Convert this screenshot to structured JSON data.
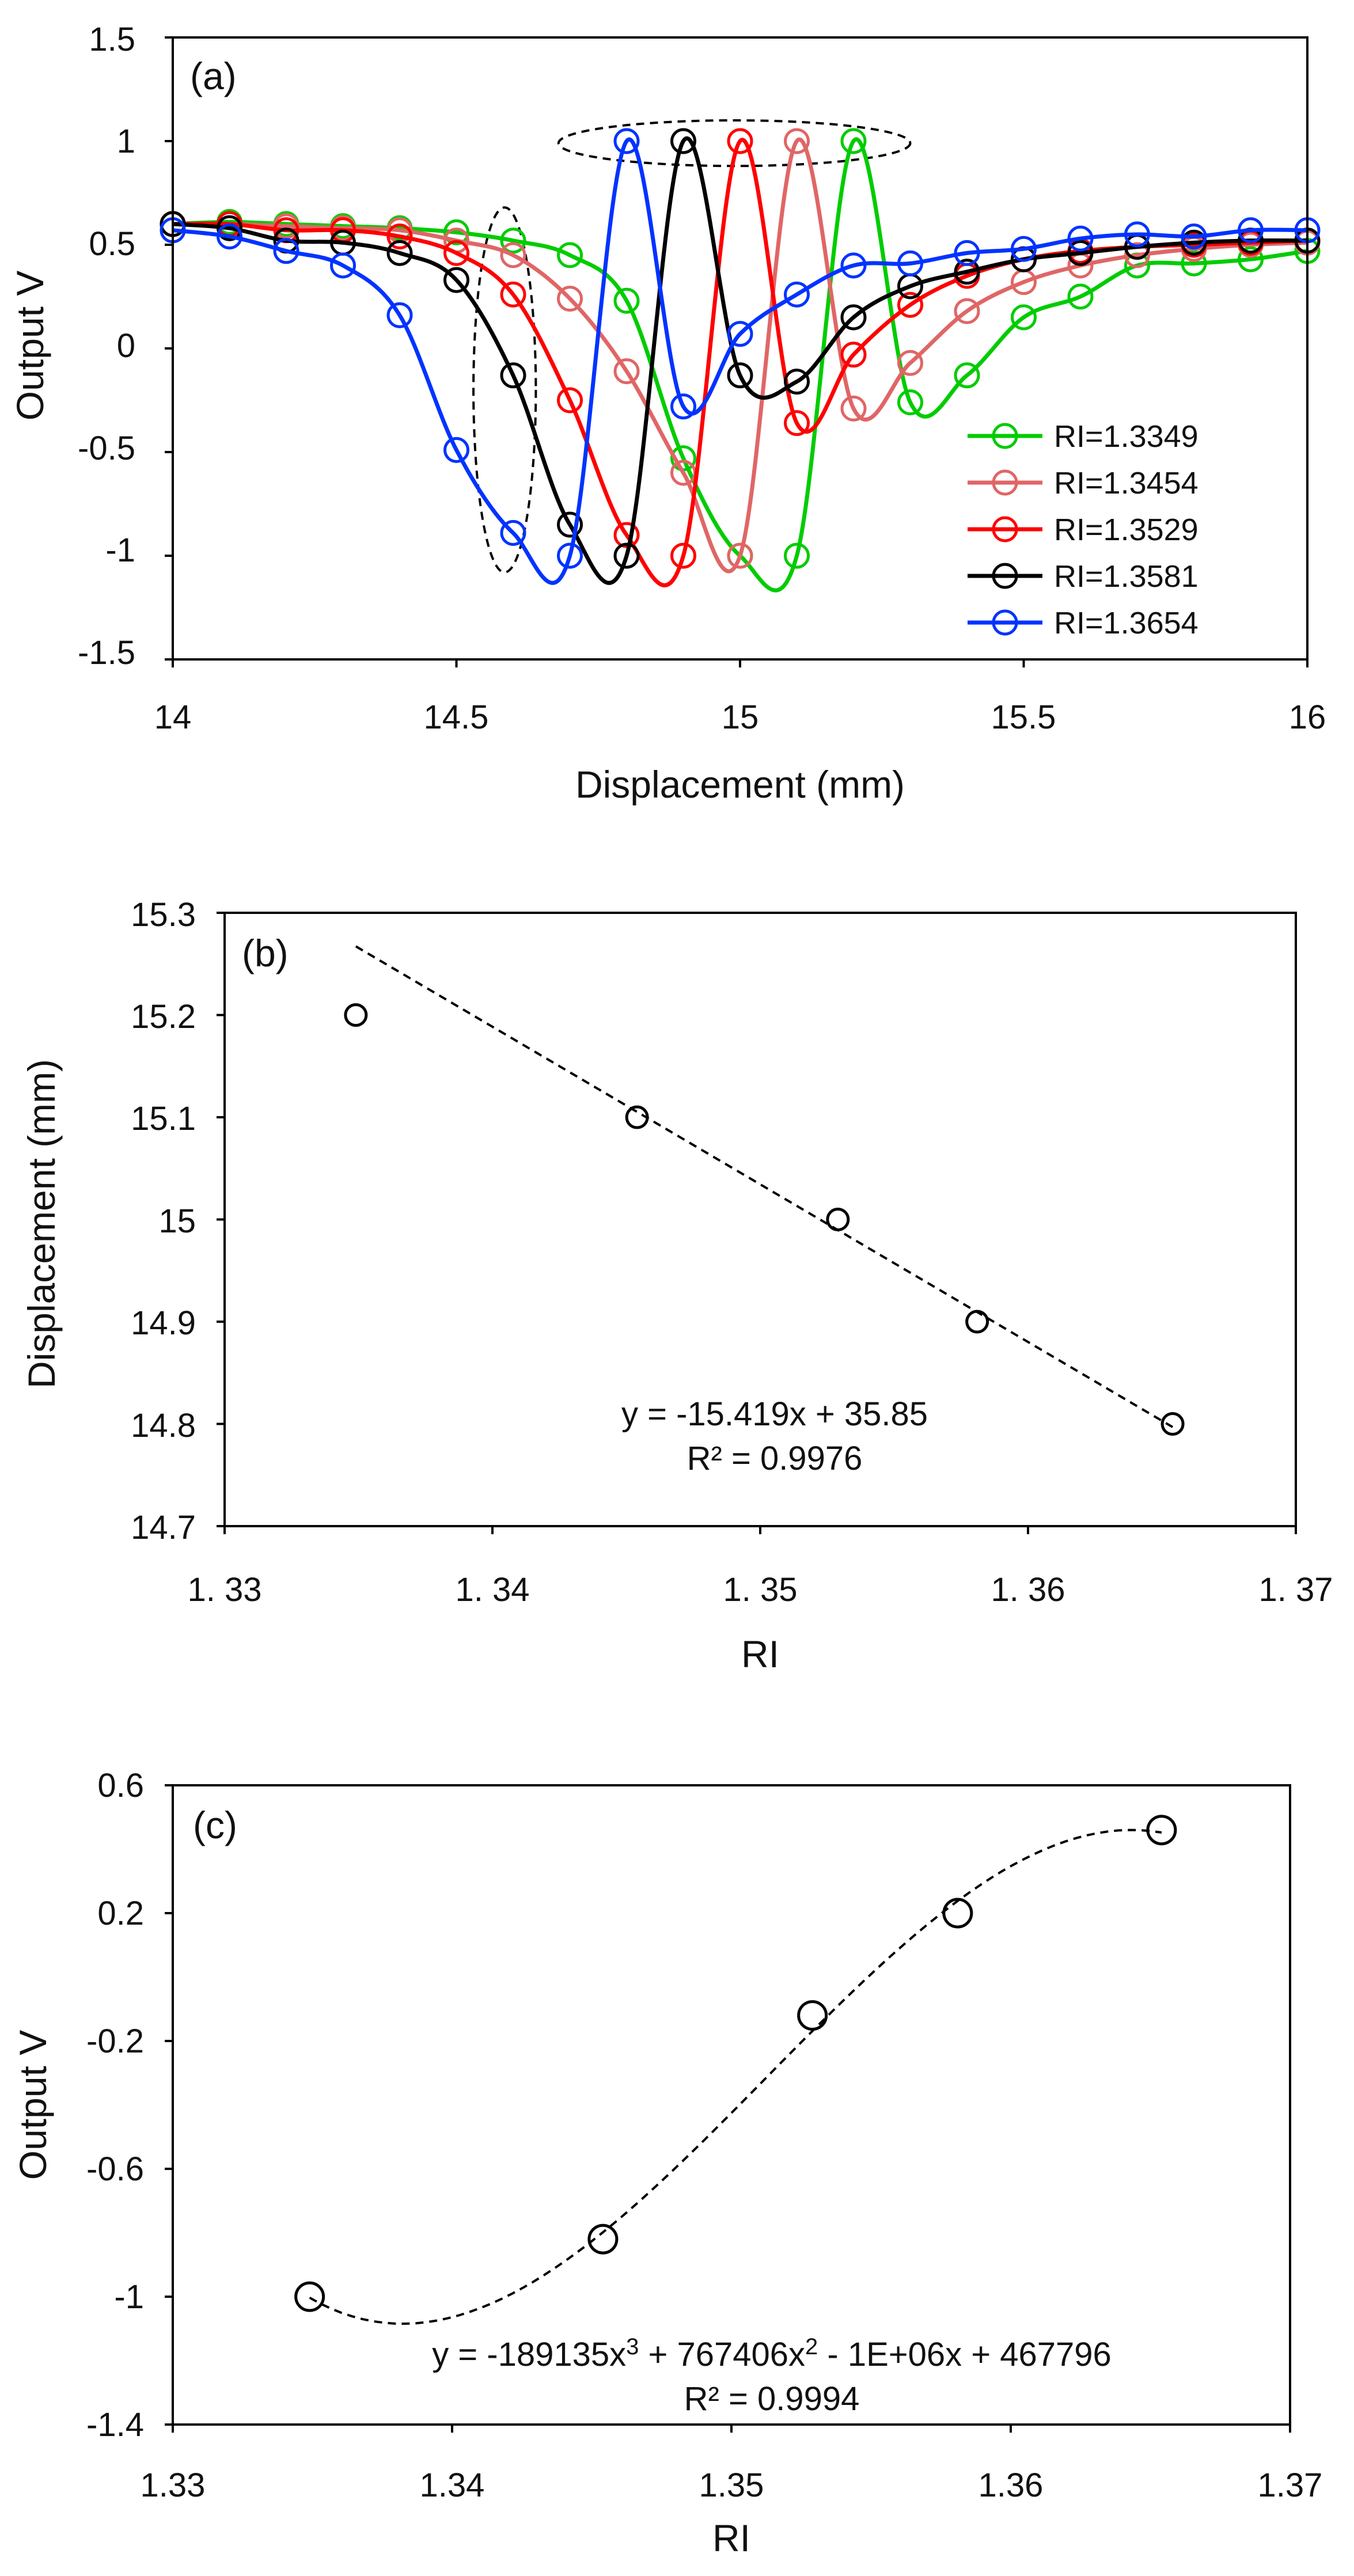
{
  "chart_data": [
    {
      "id": "a",
      "type": "line",
      "panel_label": "(a)",
      "xlabel": "Displacement (mm)",
      "ylabel": "Output V",
      "xlim": [
        14,
        16
      ],
      "ylim": [
        -1.5,
        1.5
      ],
      "xticks": [
        14,
        14.5,
        15,
        15.5,
        16
      ],
      "xtick_labels": [
        "14",
        "14.5",
        "15",
        "15.5",
        "16"
      ],
      "yticks": [
        -1.5,
        -1,
        -0.5,
        0,
        0.5,
        1,
        1.5
      ],
      "ytick_labels": [
        "-1.5",
        "-1",
        "-0.5",
        "0",
        "0.5",
        "1",
        "1.5"
      ],
      "x": [
        14.0,
        14.1,
        14.2,
        14.3,
        14.4,
        14.5,
        14.6,
        14.7,
        14.8,
        14.9,
        15.0,
        15.1,
        15.2,
        15.3,
        15.4,
        15.5,
        15.6,
        15.7,
        15.8,
        15.9,
        16.0
      ],
      "legend_position": "lower-right",
      "series": [
        {
          "name": "RI=1.3349",
          "color": "#00cc00",
          "values": [
            0.6,
            0.61,
            0.6,
            0.59,
            0.58,
            0.56,
            0.52,
            0.45,
            0.23,
            -0.53,
            -1.0,
            -1.0,
            1.0,
            -0.26,
            -0.13,
            0.15,
            0.25,
            0.4,
            0.41,
            0.43,
            0.47
          ]
        },
        {
          "name": "RI=1.3454",
          "color": "#e06666",
          "values": [
            0.6,
            0.6,
            0.59,
            0.58,
            0.57,
            0.52,
            0.45,
            0.24,
            -0.11,
            -0.6,
            -1.0,
            1.0,
            -0.29,
            -0.07,
            0.18,
            0.32,
            0.4,
            0.45,
            0.48,
            0.5,
            0.51
          ]
        },
        {
          "name": "RI=1.3529",
          "color": "#ff0000",
          "values": [
            0.6,
            0.6,
            0.57,
            0.57,
            0.54,
            0.46,
            0.26,
            -0.25,
            -0.9,
            -1.0,
            1.0,
            -0.36,
            -0.03,
            0.21,
            0.35,
            0.43,
            0.47,
            0.49,
            0.5,
            0.51,
            0.52
          ]
        },
        {
          "name": "RI=1.3581",
          "color": "#000000",
          "values": [
            0.6,
            0.58,
            0.52,
            0.51,
            0.46,
            0.33,
            -0.13,
            -0.85,
            -1.0,
            1.0,
            -0.13,
            -0.16,
            0.15,
            0.3,
            0.37,
            0.43,
            0.46,
            0.49,
            0.51,
            0.52,
            0.52
          ]
        },
        {
          "name": "RI=1.3654",
          "color": "#0033ff",
          "values": [
            0.57,
            0.54,
            0.47,
            0.4,
            0.16,
            -0.49,
            -0.89,
            -1.0,
            1.0,
            -0.28,
            0.07,
            0.26,
            0.4,
            0.41,
            0.46,
            0.48,
            0.53,
            0.55,
            0.54,
            0.57,
            0.57
          ]
        }
      ],
      "annotations": [
        {
          "shape": "dashed-ellipse",
          "x_range": [
            14.53,
            14.64
          ],
          "y_range": [
            -1.08,
            0.68
          ]
        },
        {
          "shape": "dashed-ellipse",
          "x_range": [
            14.68,
            15.3
          ],
          "y_range": [
            0.88,
            1.1
          ]
        }
      ]
    },
    {
      "id": "b",
      "type": "scatter",
      "panel_label": "(b)",
      "xlabel": "RI",
      "ylabel": "Displacement (mm)",
      "xlim": [
        1.33,
        1.37
      ],
      "ylim": [
        14.7,
        15.3
      ],
      "xticks": [
        1.33,
        1.34,
        1.35,
        1.36,
        1.37
      ],
      "xtick_labels": [
        "1. 33",
        "1. 34",
        "1. 35",
        "1. 36",
        "1. 37"
      ],
      "yticks": [
        14.7,
        14.8,
        14.9,
        15.0,
        15.1,
        15.2,
        15.3
      ],
      "ytick_labels": [
        "14.7",
        "14.8",
        "14.9",
        "15",
        "15.1",
        "15.2",
        "15.3"
      ],
      "x": [
        1.3349,
        1.3454,
        1.3529,
        1.3581,
        1.3654
      ],
      "values": [
        15.2,
        15.1,
        15.0,
        14.9,
        14.8
      ],
      "trendline": {
        "type": "linear",
        "slope": -15.419,
        "intercept": 35.85
      },
      "equation": "y = -15.419x + 35.85",
      "r_squared": "R² = 0.9976"
    },
    {
      "id": "c",
      "type": "scatter",
      "panel_label": "(c)",
      "xlabel": "RI",
      "ylabel": "Output V",
      "xlim": [
        1.33,
        1.37
      ],
      "ylim": [
        -1.4,
        0.6
      ],
      "xticks": [
        1.33,
        1.34,
        1.35,
        1.36,
        1.37
      ],
      "xtick_labels": [
        "1.33",
        "1.34",
        "1.35",
        "1.36",
        "1.37"
      ],
      "yticks": [
        -1.4,
        -1.0,
        -0.6,
        -0.2,
        0.2,
        0.6
      ],
      "ytick_labels": [
        "-1.4",
        "-1",
        "-0.6",
        "-0.2",
        "0.2",
        "0.6"
      ],
      "x": [
        1.3349,
        1.3454,
        1.3529,
        1.3581,
        1.3654
      ],
      "values": [
        -1.0,
        -0.82,
        -0.12,
        0.2,
        0.46
      ],
      "trendline": {
        "type": "cubic"
      },
      "equation_prefix": "y = -189135x",
      "equation_mid": " + 767406x",
      "equation_suffix": " - 1E+06x + 467796",
      "exponent_3": "3",
      "exponent_2": "2",
      "r_squared": "R² = 0.9994"
    }
  ]
}
